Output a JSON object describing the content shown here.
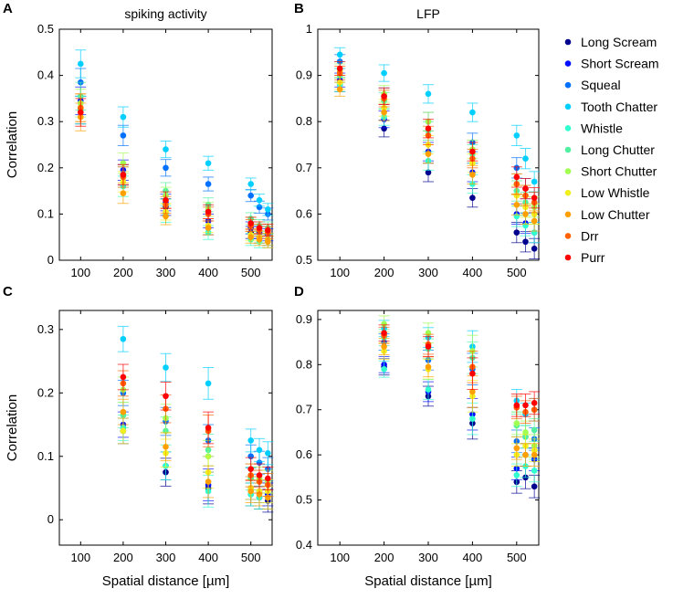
{
  "colors": {
    "Long Scream": "#00008f",
    "Short Scream": "#0010ff",
    "Squeal": "#0070ff",
    "Tooth Chatter": "#00cfff",
    "Whistle": "#30ffcf",
    "Long Chutter": "#50f0a0",
    "Short Chutter": "#a0ff50",
    "Low Whistle": "#f0f020",
    "Low Chutter": "#ffa000",
    "Drr": "#ff6000",
    "Purr": "#ff0000"
  },
  "legend": [
    "Long Scream",
    "Short Scream",
    "Squeal",
    "Tooth Chatter",
    "Whistle",
    "Long Chutter",
    "Short Chutter",
    "Low Whistle",
    "Low Chutter",
    "Drr",
    "Purr"
  ],
  "chart_data": [
    {
      "panel": "A",
      "type": "scatter",
      "title": "spiking activity",
      "xlabel": "",
      "ylabel": "Correlation",
      "xlim": [
        50,
        550
      ],
      "ylim": [
        0,
        0.5
      ],
      "xticks": [
        "100",
        "200",
        "300",
        "400",
        "500"
      ],
      "yticks": [
        "0",
        "0.1",
        "0.2",
        "0.3",
        "0.4",
        "0.5"
      ],
      "groups": [
        {
          "x": 100,
          "values": [
            0.325,
            0.345,
            0.385,
            0.425,
            0.325,
            0.355,
            0.34,
            0.33,
            0.31,
            0.33,
            0.32
          ],
          "err": 0.03
        },
        {
          "x": 200,
          "values": [
            0.185,
            0.195,
            0.27,
            0.31,
            0.16,
            0.18,
            0.21,
            0.17,
            0.145,
            0.18,
            0.185
          ],
          "err": 0.022
        },
        {
          "x": 300,
          "values": [
            0.115,
            0.125,
            0.2,
            0.24,
            0.1,
            0.15,
            0.14,
            0.105,
            0.095,
            0.12,
            0.13
          ],
          "err": 0.018
        },
        {
          "x": 400,
          "values": [
            0.07,
            0.085,
            0.165,
            0.21,
            0.06,
            0.12,
            0.11,
            0.075,
            0.07,
            0.1,
            0.105
          ],
          "err": 0.015
        },
        {
          "x": 500,
          "values": [
            0.06,
            0.07,
            0.14,
            0.165,
            0.045,
            0.09,
            0.08,
            0.055,
            0.05,
            0.075,
            0.08
          ],
          "err": 0.013
        },
        {
          "x": 520,
          "values": [
            0.05,
            0.06,
            0.115,
            0.13,
            0.04,
            0.075,
            0.07,
            0.05,
            0.045,
            0.065,
            0.07
          ],
          "err": 0.013
        },
        {
          "x": 540,
          "values": [
            0.045,
            0.055,
            0.1,
            0.11,
            0.04,
            0.07,
            0.065,
            0.045,
            0.04,
            0.06,
            0.065
          ],
          "err": 0.013
        }
      ]
    },
    {
      "panel": "B",
      "type": "scatter",
      "title": "LFP",
      "xlabel": "",
      "ylabel": "",
      "xlim": [
        50,
        550
      ],
      "ylim": [
        0.5,
        1
      ],
      "xticks": [
        "100",
        "200",
        "300",
        "400",
        "500"
      ],
      "yticks": [
        "0.5",
        "0.6",
        "0.7",
        "0.8",
        "0.9",
        "1"
      ],
      "groups": [
        {
          "x": 100,
          "values": [
            0.88,
            0.89,
            0.93,
            0.945,
            0.88,
            0.9,
            0.91,
            0.885,
            0.87,
            0.905,
            0.915
          ],
          "err": 0.015
        },
        {
          "x": 200,
          "values": [
            0.785,
            0.805,
            0.855,
            0.905,
            0.81,
            0.845,
            0.86,
            0.83,
            0.82,
            0.85,
            0.855
          ],
          "err": 0.018
        },
        {
          "x": 300,
          "values": [
            0.69,
            0.735,
            0.8,
            0.86,
            0.715,
            0.78,
            0.8,
            0.75,
            0.73,
            0.77,
            0.785
          ],
          "err": 0.02
        },
        {
          "x": 400,
          "values": [
            0.635,
            0.69,
            0.755,
            0.82,
            0.665,
            0.73,
            0.74,
            0.71,
            0.685,
            0.72,
            0.735
          ],
          "err": 0.02
        },
        {
          "x": 500,
          "values": [
            0.56,
            0.6,
            0.7,
            0.77,
            0.595,
            0.65,
            0.665,
            0.64,
            0.62,
            0.665,
            0.68
          ],
          "err": 0.022
        },
        {
          "x": 520,
          "values": [
            0.54,
            0.58,
            0.655,
            0.72,
            0.575,
            0.625,
            0.64,
            0.615,
            0.6,
            0.64,
            0.655
          ],
          "err": 0.022
        },
        {
          "x": 540,
          "values": [
            0.525,
            0.56,
            0.625,
            0.67,
            0.56,
            0.6,
            0.615,
            0.6,
            0.585,
            0.625,
            0.635
          ],
          "err": 0.022
        }
      ]
    },
    {
      "panel": "C",
      "type": "scatter",
      "title": "",
      "xlabel": "Spatial distance [µm]",
      "ylabel": "Correlation",
      "xlim": [
        50,
        550
      ],
      "ylim": [
        -0.04,
        0.33
      ],
      "xticks": [
        "100",
        "200",
        "300",
        "400",
        "500"
      ],
      "yticks": [
        "0",
        "0.1",
        "0.2",
        "0.3"
      ],
      "groups": [
        {
          "x": 200,
          "values": [
            0.14,
            0.15,
            0.2,
            0.285,
            0.145,
            0.165,
            0.205,
            0.14,
            0.17,
            0.215,
            0.225
          ],
          "err": 0.02
        },
        {
          "x": 300,
          "values": [
            0.075,
            0.085,
            0.155,
            0.24,
            0.085,
            0.14,
            0.16,
            0.105,
            0.115,
            0.175,
            0.195
          ],
          "err": 0.022
        },
        {
          "x": 400,
          "values": [
            0.05,
            0.055,
            0.125,
            0.215,
            0.045,
            0.11,
            0.1,
            0.075,
            0.06,
            0.14,
            0.145
          ],
          "err": 0.025
        },
        {
          "x": 500,
          "values": [
            0.04,
            0.05,
            0.1,
            0.125,
            0.04,
            0.065,
            0.07,
            0.05,
            0.045,
            0.07,
            0.08
          ],
          "err": 0.018
        },
        {
          "x": 520,
          "values": [
            0.035,
            0.045,
            0.09,
            0.11,
            0.035,
            0.06,
            0.065,
            0.045,
            0.04,
            0.06,
            0.07
          ],
          "err": 0.018
        },
        {
          "x": 540,
          "values": [
            0.03,
            0.04,
            0.08,
            0.105,
            0.035,
            0.055,
            0.06,
            0.045,
            0.035,
            0.055,
            0.065
          ],
          "err": 0.018
        }
      ]
    },
    {
      "panel": "D",
      "type": "scatter",
      "title": "",
      "xlabel": "Spatial distance [µm]",
      "ylabel": "",
      "xlim": [
        50,
        550
      ],
      "ylim": [
        0.4,
        0.92
      ],
      "xticks": [
        "100",
        "200",
        "300",
        "400",
        "500"
      ],
      "yticks": [
        "0.4",
        "0.5",
        "0.6",
        "0.7",
        "0.8",
        "0.9"
      ],
      "groups": [
        {
          "x": 200,
          "values": [
            0.795,
            0.8,
            0.85,
            0.88,
            0.79,
            0.86,
            0.89,
            0.83,
            0.84,
            0.865,
            0.87
          ],
          "err": 0.018
        },
        {
          "x": 300,
          "values": [
            0.73,
            0.74,
            0.81,
            0.86,
            0.745,
            0.835,
            0.87,
            0.79,
            0.795,
            0.845,
            0.84
          ],
          "err": 0.022
        },
        {
          "x": 400,
          "values": [
            0.67,
            0.69,
            0.79,
            0.84,
            0.68,
            0.815,
            0.83,
            0.73,
            0.74,
            0.795,
            0.78
          ],
          "err": 0.035
        },
        {
          "x": 500,
          "values": [
            0.54,
            0.57,
            0.63,
            0.72,
            0.555,
            0.665,
            0.67,
            0.6,
            0.615,
            0.705,
            0.71
          ],
          "err": 0.025
        },
        {
          "x": 520,
          "values": [
            0.55,
            0.6,
            0.64,
            0.69,
            0.575,
            0.64,
            0.65,
            0.62,
            0.6,
            0.695,
            0.71
          ],
          "err": 0.025
        },
        {
          "x": 540,
          "values": [
            0.53,
            0.59,
            0.635,
            0.7,
            0.565,
            0.655,
            0.62,
            0.61,
            0.6,
            0.7,
            0.715
          ],
          "err": 0.025
        }
      ]
    }
  ],
  "panel_labels": [
    "A",
    "B",
    "C",
    "D"
  ]
}
